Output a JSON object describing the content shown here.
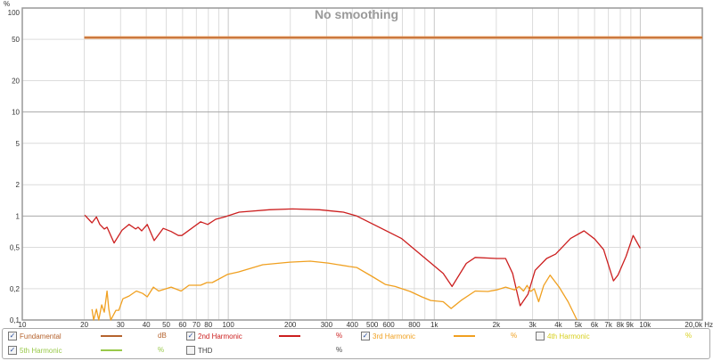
{
  "chart_data": {
    "type": "line",
    "title": "No smoothing",
    "ylabel": "%",
    "xlabel": "Hz",
    "x_scale": "log",
    "y_scale": "log",
    "xlim": [
      10,
      20000
    ],
    "ylim": [
      0.1,
      100
    ],
    "grid": true,
    "y_ticks": [
      "100",
      "50",
      "20",
      "10",
      "5",
      "2",
      "1",
      "0,5",
      "0,2",
      "0,1"
    ],
    "y_tick_values": [
      100,
      50,
      20,
      10,
      5,
      2,
      1,
      0.5,
      0.2,
      0.1
    ],
    "x_ticks": [
      "10",
      "20",
      "30",
      "40",
      "50",
      "60",
      "70",
      "80",
      "100",
      "200",
      "300",
      "400",
      "500",
      "600",
      "800",
      "1k",
      "2k",
      "3k",
      "4k",
      "5k",
      "6k",
      "7k",
      "8k",
      "9k",
      "10k",
      "20,0k Hz"
    ],
    "x_tick_values": [
      10,
      20,
      30,
      40,
      50,
      60,
      70,
      80,
      100,
      200,
      300,
      400,
      500,
      600,
      800,
      1000,
      2000,
      3000,
      4000,
      5000,
      6000,
      7000,
      8000,
      9000,
      10000,
      20000
    ],
    "series": [
      {
        "name": "Fundamental",
        "unit": "dB",
        "color": "#b5632e",
        "checked": true,
        "x": [
          20,
          20000
        ],
        "y": [
          52,
          52
        ]
      },
      {
        "name": "2nd Harmonic",
        "unit": "%",
        "color": "#cc1f1f",
        "checked": true,
        "x": [
          20.1,
          21.8,
          22.9,
          23.8,
          25,
          25.8,
          27.9,
          30.5,
          33,
          35.5,
          36.5,
          38,
          40.4,
          43.7,
          48.3,
          52.8,
          57.2,
          59.5,
          64.5,
          73.4,
          79.5,
          86.9,
          96,
          113,
          158,
          205,
          277,
          362,
          420,
          692,
          905,
          1105,
          1220,
          1430,
          1580,
          2010,
          2220,
          2400,
          2610,
          2850,
          3085,
          3510,
          3880,
          4590,
          5330,
          6010,
          6640,
          7410,
          7790,
          8530,
          9230,
          10000
        ],
        "y": [
          1.02,
          0.86,
          0.98,
          0.83,
          0.75,
          0.78,
          0.55,
          0.73,
          0.83,
          0.75,
          0.78,
          0.72,
          0.83,
          0.58,
          0.76,
          0.71,
          0.65,
          0.65,
          0.73,
          0.88,
          0.83,
          0.93,
          0.98,
          1.09,
          1.15,
          1.17,
          1.15,
          1.09,
          1.0,
          0.61,
          0.39,
          0.28,
          0.21,
          0.35,
          0.4,
          0.39,
          0.39,
          0.28,
          0.137,
          0.177,
          0.3,
          0.39,
          0.43,
          0.61,
          0.72,
          0.6,
          0.475,
          0.238,
          0.27,
          0.41,
          0.65,
          0.49
        ]
      },
      {
        "name": "3rd Harmonic",
        "unit": "%",
        "color": "#f0a020",
        "checked": true,
        "x": [
          21.8,
          22.2,
          22.9,
          23.5,
          24.3,
          25,
          25.8,
          26.3,
          26.9,
          28.5,
          29.4,
          30.8,
          33,
          35.8,
          38.4,
          40.4,
          43.3,
          45.9,
          52.8,
          59,
          64.5,
          73.4,
          78.7,
          83.6,
          99,
          112,
          147,
          199,
          250,
          305,
          388,
          420,
          498,
          578,
          645,
          764,
          869,
          961,
          1105,
          1208,
          1348,
          1580,
          1820,
          2010,
          2220,
          2455,
          2580,
          2710,
          2820,
          2940,
          3055,
          3210,
          3400,
          3650,
          4040,
          4460,
          4930
        ],
        "y": [
          0.127,
          0.1,
          0.127,
          0.1,
          0.14,
          0.119,
          0.19,
          0.127,
          0.1,
          0.124,
          0.124,
          0.16,
          0.17,
          0.19,
          0.18,
          0.167,
          0.207,
          0.19,
          0.207,
          0.19,
          0.216,
          0.216,
          0.229,
          0.229,
          0.274,
          0.29,
          0.34,
          0.36,
          0.368,
          0.353,
          0.327,
          0.32,
          0.263,
          0.22,
          0.21,
          0.188,
          0.167,
          0.154,
          0.15,
          0.129,
          0.154,
          0.19,
          0.188,
          0.195,
          0.207,
          0.195,
          0.21,
          0.19,
          0.215,
          0.188,
          0.2,
          0.15,
          0.215,
          0.27,
          0.207,
          0.15,
          0.1
        ]
      },
      {
        "name": "4th Harmonic",
        "unit": "%",
        "color": "#d8d020",
        "checked": false,
        "x": [],
        "y": []
      },
      {
        "name": "5th Harmonic",
        "unit": "%",
        "color": "#99c94a",
        "checked": true,
        "x": [],
        "y": []
      },
      {
        "name": "THD",
        "unit": "%",
        "color": "#808080",
        "checked": false,
        "x": [],
        "y": []
      }
    ]
  },
  "check_glyph": "✓"
}
